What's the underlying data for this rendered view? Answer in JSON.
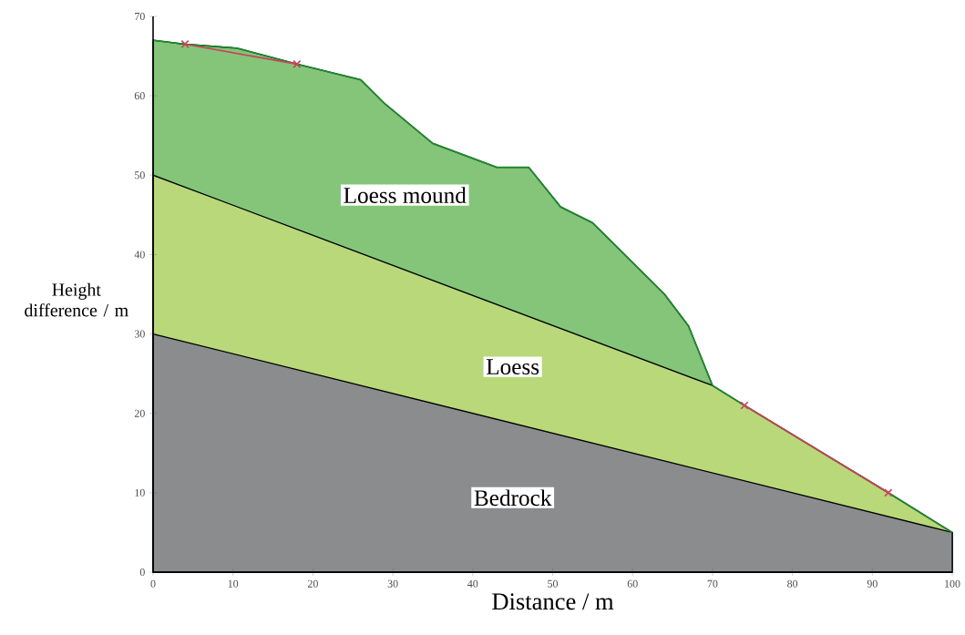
{
  "chart_data": {
    "type": "area",
    "xlabel": "Distance / m",
    "ylabel": "Height difference / m",
    "xlim": [
      0,
      100
    ],
    "ylim": [
      0,
      70
    ],
    "xticks": [
      0,
      10,
      20,
      30,
      40,
      50,
      60,
      70,
      80,
      90,
      100
    ],
    "yticks": [
      0,
      10,
      20,
      30,
      40,
      50,
      60,
      70
    ],
    "series": [
      {
        "name": "Bedrock",
        "color": "#8a8c8e",
        "x": [
          0,
          100
        ],
        "values": [
          30,
          5
        ]
      },
      {
        "name": "Loess",
        "color": "#b8d87a",
        "x": [
          0,
          70,
          74,
          92,
          100
        ],
        "values": [
          50,
          23.5,
          21,
          10,
          5
        ]
      },
      {
        "name": "Loess mound",
        "color": "#84c57a",
        "x": [
          0,
          4,
          10.5,
          18,
          26,
          29,
          35,
          43,
          47,
          51,
          55,
          60,
          64,
          67,
          70
        ],
        "values": [
          67,
          66.5,
          66,
          64,
          62,
          59,
          54,
          51,
          51,
          46,
          44,
          39,
          35,
          31,
          23.5
        ]
      },
      {
        "type": "line",
        "color": "#1f8a30",
        "x": [
          0,
          4,
          10.5,
          18,
          26,
          29,
          35,
          43,
          47,
          51,
          55,
          60,
          64,
          67,
          70,
          74,
          92,
          100
        ],
        "values": [
          67,
          66.5,
          66,
          64,
          62,
          59,
          54,
          51,
          51,
          46,
          44,
          39,
          35,
          31,
          23.5,
          21,
          10,
          5
        ]
      },
      {
        "type": "line",
        "color": "#c8445a",
        "marker": "cross",
        "x": [
          4,
          18
        ],
        "values": [
          66.5,
          64
        ]
      },
      {
        "type": "line",
        "color": "#c8445a",
        "marker": "cross",
        "x": [
          74,
          92
        ],
        "values": [
          21,
          10
        ]
      }
    ]
  }
}
